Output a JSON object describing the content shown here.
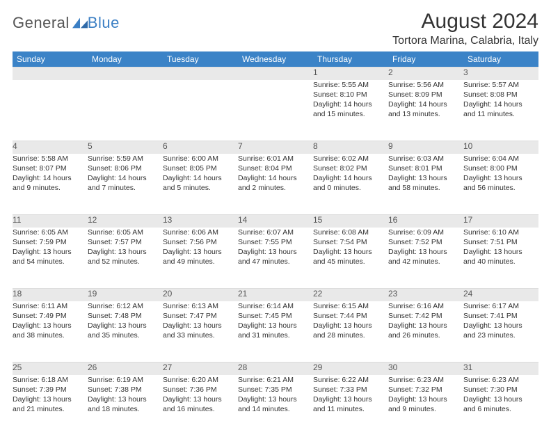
{
  "logo": {
    "general": "General",
    "blue": "Blue"
  },
  "title": "August 2024",
  "location": "Tortora Marina, Calabria, Italy",
  "colors": {
    "header_bg": "#3b83c7",
    "header_fg": "#ffffff",
    "daynum_bg": "#e9e9e9",
    "text": "#333333",
    "logo_blue": "#3b7fc4"
  },
  "weekdays": [
    "Sunday",
    "Monday",
    "Tuesday",
    "Wednesday",
    "Thursday",
    "Friday",
    "Saturday"
  ],
  "weeks": [
    [
      {
        "n": "",
        "lines": []
      },
      {
        "n": "",
        "lines": []
      },
      {
        "n": "",
        "lines": []
      },
      {
        "n": "",
        "lines": []
      },
      {
        "n": "1",
        "lines": [
          "Sunrise: 5:55 AM",
          "Sunset: 8:10 PM",
          "Daylight: 14 hours",
          "and 15 minutes."
        ]
      },
      {
        "n": "2",
        "lines": [
          "Sunrise: 5:56 AM",
          "Sunset: 8:09 PM",
          "Daylight: 14 hours",
          "and 13 minutes."
        ]
      },
      {
        "n": "3",
        "lines": [
          "Sunrise: 5:57 AM",
          "Sunset: 8:08 PM",
          "Daylight: 14 hours",
          "and 11 minutes."
        ]
      }
    ],
    [
      {
        "n": "4",
        "lines": [
          "Sunrise: 5:58 AM",
          "Sunset: 8:07 PM",
          "Daylight: 14 hours",
          "and 9 minutes."
        ]
      },
      {
        "n": "5",
        "lines": [
          "Sunrise: 5:59 AM",
          "Sunset: 8:06 PM",
          "Daylight: 14 hours",
          "and 7 minutes."
        ]
      },
      {
        "n": "6",
        "lines": [
          "Sunrise: 6:00 AM",
          "Sunset: 8:05 PM",
          "Daylight: 14 hours",
          "and 5 minutes."
        ]
      },
      {
        "n": "7",
        "lines": [
          "Sunrise: 6:01 AM",
          "Sunset: 8:04 PM",
          "Daylight: 14 hours",
          "and 2 minutes."
        ]
      },
      {
        "n": "8",
        "lines": [
          "Sunrise: 6:02 AM",
          "Sunset: 8:02 PM",
          "Daylight: 14 hours",
          "and 0 minutes."
        ]
      },
      {
        "n": "9",
        "lines": [
          "Sunrise: 6:03 AM",
          "Sunset: 8:01 PM",
          "Daylight: 13 hours",
          "and 58 minutes."
        ]
      },
      {
        "n": "10",
        "lines": [
          "Sunrise: 6:04 AM",
          "Sunset: 8:00 PM",
          "Daylight: 13 hours",
          "and 56 minutes."
        ]
      }
    ],
    [
      {
        "n": "11",
        "lines": [
          "Sunrise: 6:05 AM",
          "Sunset: 7:59 PM",
          "Daylight: 13 hours",
          "and 54 minutes."
        ]
      },
      {
        "n": "12",
        "lines": [
          "Sunrise: 6:05 AM",
          "Sunset: 7:57 PM",
          "Daylight: 13 hours",
          "and 52 minutes."
        ]
      },
      {
        "n": "13",
        "lines": [
          "Sunrise: 6:06 AM",
          "Sunset: 7:56 PM",
          "Daylight: 13 hours",
          "and 49 minutes."
        ]
      },
      {
        "n": "14",
        "lines": [
          "Sunrise: 6:07 AM",
          "Sunset: 7:55 PM",
          "Daylight: 13 hours",
          "and 47 minutes."
        ]
      },
      {
        "n": "15",
        "lines": [
          "Sunrise: 6:08 AM",
          "Sunset: 7:54 PM",
          "Daylight: 13 hours",
          "and 45 minutes."
        ]
      },
      {
        "n": "16",
        "lines": [
          "Sunrise: 6:09 AM",
          "Sunset: 7:52 PM",
          "Daylight: 13 hours",
          "and 42 minutes."
        ]
      },
      {
        "n": "17",
        "lines": [
          "Sunrise: 6:10 AM",
          "Sunset: 7:51 PM",
          "Daylight: 13 hours",
          "and 40 minutes."
        ]
      }
    ],
    [
      {
        "n": "18",
        "lines": [
          "Sunrise: 6:11 AM",
          "Sunset: 7:49 PM",
          "Daylight: 13 hours",
          "and 38 minutes."
        ]
      },
      {
        "n": "19",
        "lines": [
          "Sunrise: 6:12 AM",
          "Sunset: 7:48 PM",
          "Daylight: 13 hours",
          "and 35 minutes."
        ]
      },
      {
        "n": "20",
        "lines": [
          "Sunrise: 6:13 AM",
          "Sunset: 7:47 PM",
          "Daylight: 13 hours",
          "and 33 minutes."
        ]
      },
      {
        "n": "21",
        "lines": [
          "Sunrise: 6:14 AM",
          "Sunset: 7:45 PM",
          "Daylight: 13 hours",
          "and 31 minutes."
        ]
      },
      {
        "n": "22",
        "lines": [
          "Sunrise: 6:15 AM",
          "Sunset: 7:44 PM",
          "Daylight: 13 hours",
          "and 28 minutes."
        ]
      },
      {
        "n": "23",
        "lines": [
          "Sunrise: 6:16 AM",
          "Sunset: 7:42 PM",
          "Daylight: 13 hours",
          "and 26 minutes."
        ]
      },
      {
        "n": "24",
        "lines": [
          "Sunrise: 6:17 AM",
          "Sunset: 7:41 PM",
          "Daylight: 13 hours",
          "and 23 minutes."
        ]
      }
    ],
    [
      {
        "n": "25",
        "lines": [
          "Sunrise: 6:18 AM",
          "Sunset: 7:39 PM",
          "Daylight: 13 hours",
          "and 21 minutes."
        ]
      },
      {
        "n": "26",
        "lines": [
          "Sunrise: 6:19 AM",
          "Sunset: 7:38 PM",
          "Daylight: 13 hours",
          "and 18 minutes."
        ]
      },
      {
        "n": "27",
        "lines": [
          "Sunrise: 6:20 AM",
          "Sunset: 7:36 PM",
          "Daylight: 13 hours",
          "and 16 minutes."
        ]
      },
      {
        "n": "28",
        "lines": [
          "Sunrise: 6:21 AM",
          "Sunset: 7:35 PM",
          "Daylight: 13 hours",
          "and 14 minutes."
        ]
      },
      {
        "n": "29",
        "lines": [
          "Sunrise: 6:22 AM",
          "Sunset: 7:33 PM",
          "Daylight: 13 hours",
          "and 11 minutes."
        ]
      },
      {
        "n": "30",
        "lines": [
          "Sunrise: 6:23 AM",
          "Sunset: 7:32 PM",
          "Daylight: 13 hours",
          "and 9 minutes."
        ]
      },
      {
        "n": "31",
        "lines": [
          "Sunrise: 6:23 AM",
          "Sunset: 7:30 PM",
          "Daylight: 13 hours",
          "and 6 minutes."
        ]
      }
    ]
  ]
}
